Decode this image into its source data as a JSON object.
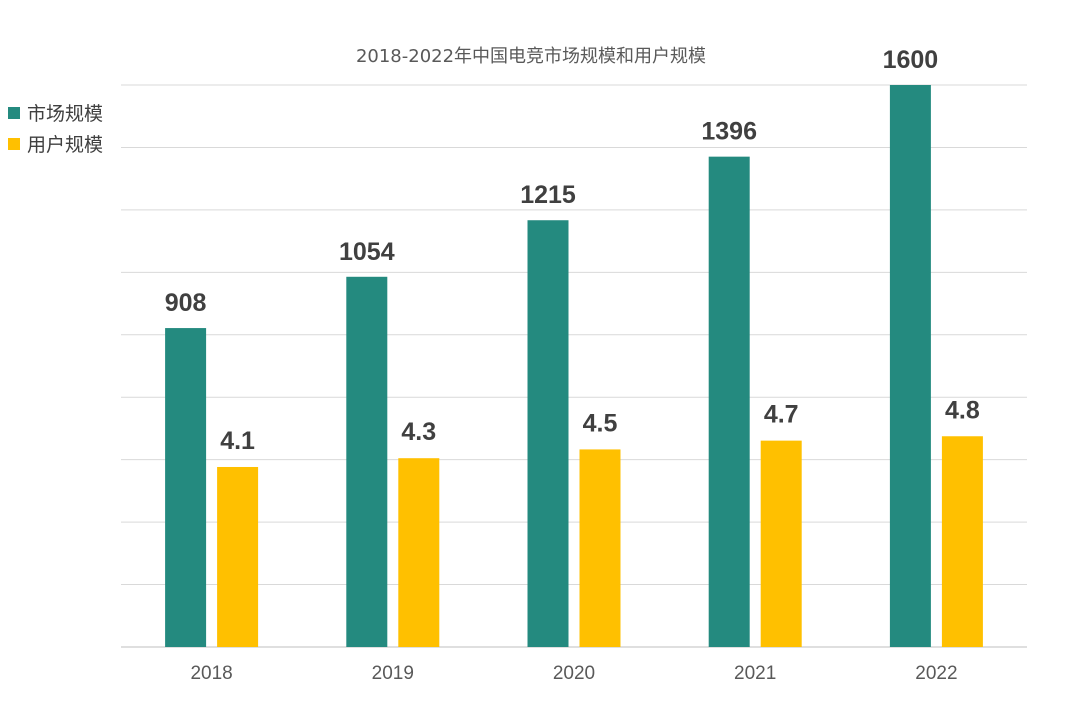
{
  "chart_data": {
    "type": "bar",
    "title": "2018-2022年中国电竞市场规模和用户规模",
    "xlabel": "",
    "ylabel": "",
    "categories": [
      "2018",
      "2019",
      "2020",
      "2021",
      "2022"
    ],
    "series": [
      {
        "name": "市场规模",
        "color": "#248A7F",
        "values": [
          908,
          1054,
          1215,
          1396,
          1600
        ],
        "labels": [
          "908",
          "1054",
          "1215",
          "1396",
          "1600"
        ]
      },
      {
        "name": "用户规模",
        "color": "#FFC000",
        "values": [
          4.1,
          4.3,
          4.5,
          4.7,
          4.8
        ],
        "labels": [
          "4.1",
          "4.3",
          "4.5",
          "4.7",
          "4.8"
        ]
      }
    ],
    "axes": [
      {
        "series": "市场规模",
        "ylim": [
          0,
          1600
        ]
      },
      {
        "series": "用户规模",
        "ylim": [
          0,
          12.8
        ]
      }
    ],
    "grid": true,
    "gridlines": 9,
    "legend_position": "top-left",
    "axis_labels_visible": false
  }
}
